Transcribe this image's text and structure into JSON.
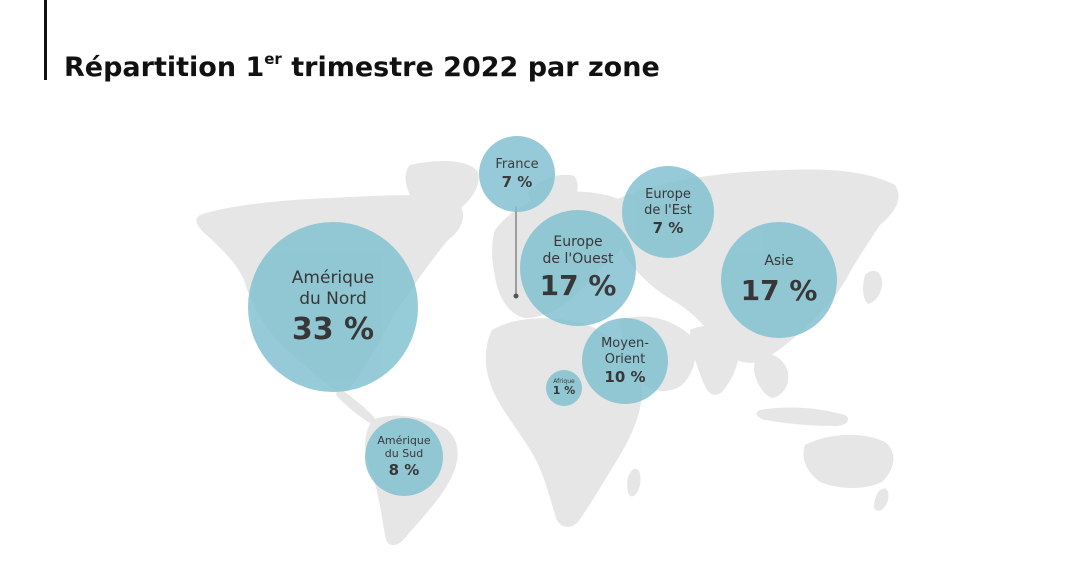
{
  "slide": {
    "title_prefix": "Répartition 1",
    "title_sup": "er",
    "title_suffix": " trimestre 2022 par zone"
  },
  "zones": [
    {
      "label": "Amérique\ndu Nord",
      "value": "33 %"
    },
    {
      "label": "France",
      "value": "7 %"
    },
    {
      "label": "Europe\nde l'Ouest",
      "value": "17 %"
    },
    {
      "label": "Europe\nde l'Est",
      "value": "7 %"
    },
    {
      "label": "Asie",
      "value": "17 %"
    },
    {
      "label": "Moyen-\nOrient",
      "value": "10 %"
    },
    {
      "label": "Afrique",
      "value": "1 %"
    },
    {
      "label": "Amérique\ndu Sud",
      "value": "8 %"
    }
  ],
  "colors": {
    "bubble": "#7fbfd0",
    "land": "#e6e6e6",
    "text": "#111111"
  }
}
